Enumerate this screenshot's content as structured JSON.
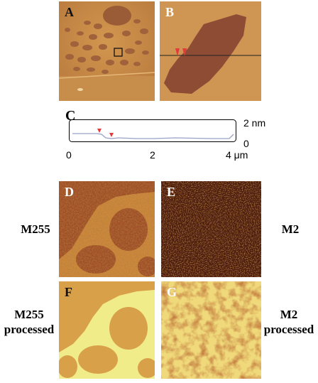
{
  "panels": {
    "A": "A",
    "B": "B",
    "C": "C",
    "D": "D",
    "E": "E",
    "F": "F",
    "G": "G"
  },
  "profile": {
    "y_top": "2 nm",
    "y_bottom": "0",
    "x_ticks": [
      "0",
      "2",
      "4 μm"
    ]
  },
  "row_labels": {
    "left_top": "M255",
    "right_top": "M2",
    "left_bottom_line1": "M255",
    "left_bottom_line2": "processed",
    "right_bottom_line1": "M2",
    "right_bottom_line2": "processed"
  },
  "colors": {
    "afm_light": "#c9893f",
    "afm_dark": "#8a4b2e",
    "marker": "#e23b3b",
    "profile_line": "#9aa0c8"
  }
}
